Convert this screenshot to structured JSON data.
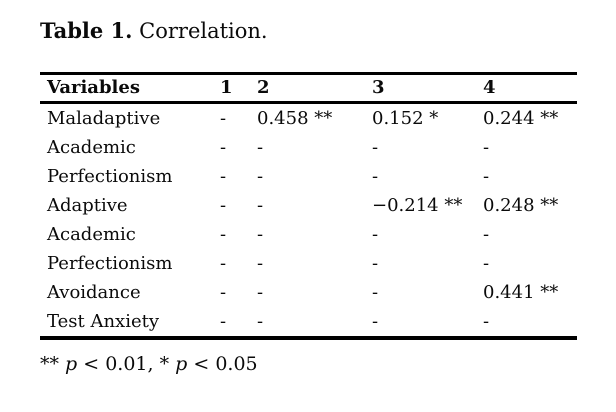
{
  "page": {
    "background_color": "#ffffff",
    "text_color": "#0a0a0a"
  },
  "caption": {
    "label": "Table 1.",
    "title": " Correlation."
  },
  "table": {
    "columns": [
      "Variables",
      "1",
      "2",
      "3",
      "4"
    ],
    "rows": [
      [
        "Maladaptive",
        "-",
        "0.458 **",
        "0.152 *",
        "0.244 **"
      ],
      [
        "Academic",
        "-",
        "-",
        "-",
        "-"
      ],
      [
        "Perfectionism",
        "-",
        "-",
        "-",
        "-"
      ],
      [
        "Adaptive",
        "-",
        "-",
        "−0.214 **",
        "0.248 **"
      ],
      [
        "Academic",
        "-",
        "-",
        "-",
        "-"
      ],
      [
        "Perfectionism",
        "-",
        "-",
        "-",
        "-"
      ],
      [
        "Avoidance",
        "-",
        "-",
        "-",
        "0.441 **"
      ],
      [
        "Test Anxiety",
        "-",
        "-",
        "-",
        "-"
      ]
    ]
  },
  "footnote": {
    "plain": "** p < 0.01, * p < 0.05",
    "parts": [
      {
        "text": "** "
      },
      {
        "text": "p",
        "italic": true
      },
      {
        "text": " < 0.01, * "
      },
      {
        "text": "p",
        "italic": true
      },
      {
        "text": " < 0.05"
      }
    ]
  }
}
